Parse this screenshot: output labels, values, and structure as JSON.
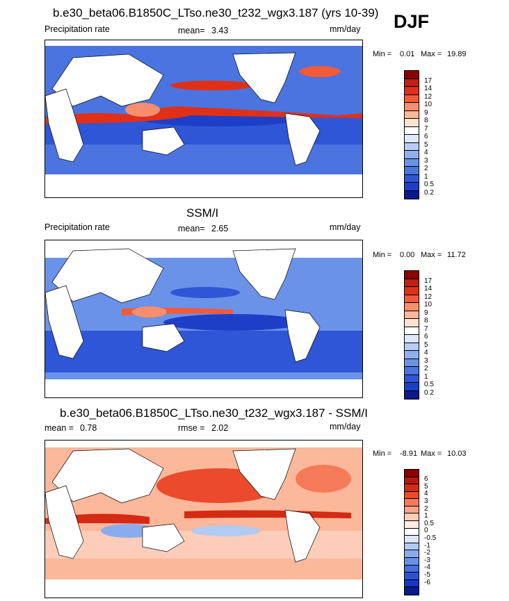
{
  "header": {
    "season": "DJF"
  },
  "colors": {
    "scale_precip": [
      "#8b0000",
      "#c02010",
      "#e03018",
      "#f25a38",
      "#f98e6c",
      "#fcb89a",
      "#fde3d2",
      "#ffffff",
      "#dde8fb",
      "#b7cdf5",
      "#8fb0ee",
      "#6a92e8",
      "#4b74e0",
      "#2f56d6",
      "#1d3fc8",
      "#0a1a8a"
    ],
    "scale_diff": [
      "#8b0000",
      "#b4180c",
      "#d52a14",
      "#ec4a2c",
      "#f57a58",
      "#faa48a",
      "#fdcdb9",
      "#ffece3",
      "#ffffff",
      "#dae6fb",
      "#b2caf4",
      "#8aaced",
      "#668fe7",
      "#4670de",
      "#2c52d4",
      "#1637c4",
      "#0a1a8a"
    ]
  },
  "panels": [
    {
      "title": "b.e30_beta06.B1850C_LTso.ne30_t232_wgx3.187 (yrs 10-39)",
      "left_label": "Precipitation rate",
      "mean_label": "mean=",
      "mean_value": "3.43",
      "units": "mm/day",
      "min_label": "Min =",
      "min_value": "0.01",
      "max_label": "Max =",
      "max_value": "19.89",
      "colorbar_ticks": [
        "17",
        "14",
        "12",
        "10",
        "9",
        "8",
        "7",
        "6",
        "5",
        "4",
        "3",
        "2",
        "1",
        "0.5",
        "0.2"
      ]
    },
    {
      "title": "SSM/I",
      "left_label": "Precipitation rate",
      "mean_label": "mean=",
      "mean_value": "2.65",
      "units": "mm/day",
      "min_label": "Min =",
      "min_value": "0.00",
      "max_label": "Max =",
      "max_value": "11.72",
      "colorbar_ticks": [
        "17",
        "14",
        "12",
        "10",
        "9",
        "8",
        "7",
        "6",
        "5",
        "4",
        "3",
        "2",
        "1",
        "0.5",
        "0.2"
      ]
    },
    {
      "title": "b.e30_beta06.B1850C_LTso.ne30_t232_wgx3.187 - SSM/I",
      "left_label": "mean =",
      "left_value": "0.78",
      "mean_label": "rmse =",
      "mean_value": "2.02",
      "units": "mm/day",
      "min_label": "Min =",
      "min_value": "-8.91",
      "max_label": "Max =",
      "max_value": "10.03",
      "colorbar_ticks": [
        "6",
        "5",
        "4",
        "3",
        "2",
        "1",
        "0.5",
        "0",
        "-0.5",
        "-1",
        "-2",
        "-3",
        "-4",
        "-5",
        "-6"
      ]
    }
  ]
}
